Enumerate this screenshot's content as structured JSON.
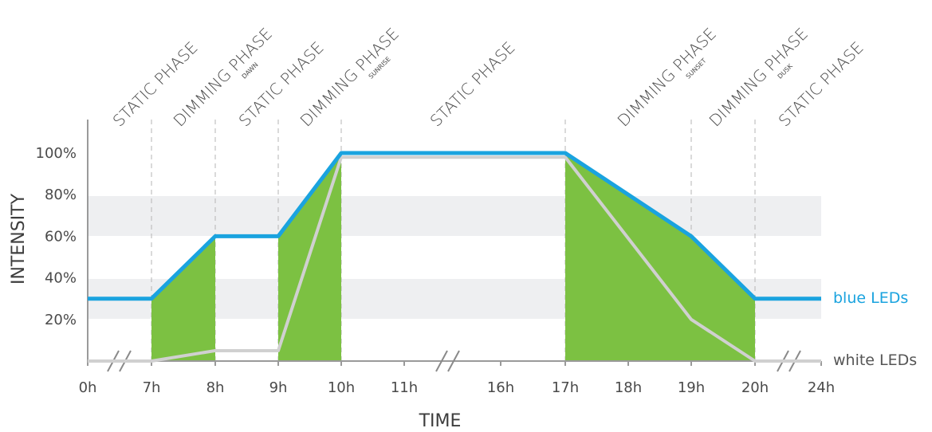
{
  "chart_data": {
    "type": "line",
    "xlabel": "TIME",
    "ylabel": "INTENSITY",
    "x_ticks": [
      "0h",
      "7h",
      "8h",
      "9h",
      "10h",
      "11h",
      "16h",
      "17h",
      "18h",
      "19h",
      "20h",
      "24h"
    ],
    "y_ticks": [
      "20%",
      "40%",
      "60%",
      "80%",
      "100%"
    ],
    "ylim": [
      0,
      100
    ],
    "grid": "alternating horizontal bands",
    "phases": [
      {
        "label": "STATIC PHASE",
        "sub": ""
      },
      {
        "label": "DIMMING PHASE",
        "sub": "DAWN"
      },
      {
        "label": "STATIC PHASE",
        "sub": ""
      },
      {
        "label": "DIMMING PHASE",
        "sub": "SUNRISE"
      },
      {
        "label": "STATIC PHASE",
        "sub": ""
      },
      {
        "label": "DIMMING PHASE",
        "sub": "SUNSET"
      },
      {
        "label": "DIMMING PHASE",
        "sub": "DUSK"
      },
      {
        "label": "STATIC PHASE",
        "sub": ""
      }
    ],
    "series": [
      {
        "name": "blue LEDs",
        "color": "#1aa3df",
        "points": [
          [
            "0h",
            30
          ],
          [
            "7h",
            30
          ],
          [
            "8h",
            60
          ],
          [
            "9h",
            60
          ],
          [
            "10h",
            100
          ],
          [
            "17h",
            100
          ],
          [
            "19h",
            60
          ],
          [
            "20h",
            30
          ],
          [
            "24h",
            30
          ]
        ]
      },
      {
        "name": "white LEDs",
        "color": "#d0d0d0",
        "points": [
          [
            "0h",
            0
          ],
          [
            "7h",
            0
          ],
          [
            "8h",
            5
          ],
          [
            "9h",
            5
          ],
          [
            "10h",
            98
          ],
          [
            "17h",
            98
          ],
          [
            "19h",
            20
          ],
          [
            "20h",
            0
          ],
          [
            "24h",
            0
          ]
        ]
      }
    ],
    "dimming_fill_color": "#7cc142"
  }
}
